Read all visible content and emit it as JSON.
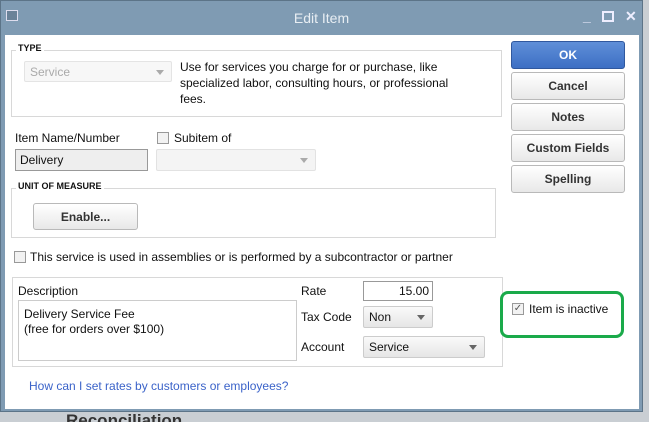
{
  "window": {
    "title": "Edit Item"
  },
  "type": {
    "label": "TYPE",
    "value": "Service",
    "description": "Use for services you charge for or purchase, like specialized labor, consulting hours, or professional fees."
  },
  "item": {
    "name_label": "Item Name/Number",
    "name_value": "Delivery",
    "subitem_label": "Subitem of",
    "subitem_checked": false
  },
  "uom": {
    "label": "UNIT OF MEASURE",
    "enable_button": "Enable..."
  },
  "assembly": {
    "label": "This service is used in assemblies or is performed by a subcontractor or partner",
    "checked": false
  },
  "details": {
    "description_label": "Description",
    "description_lines": [
      "Delivery Service Fee",
      "(free for orders over $100)"
    ],
    "rate_label": "Rate",
    "rate_value": "15.00",
    "taxcode_label": "Tax Code",
    "taxcode_value": "Non",
    "account_label": "Account",
    "account_value": "Service"
  },
  "help_link": "How can I set rates by customers or employees?",
  "buttons": {
    "ok": "OK",
    "cancel": "Cancel",
    "notes": "Notes",
    "custom_fields": "Custom Fields",
    "spelling": "Spelling"
  },
  "inactive": {
    "label": "Item is inactive",
    "checked": true,
    "highlight_color": "#1aaa4a"
  },
  "background": {
    "text": "Reconciliation"
  }
}
